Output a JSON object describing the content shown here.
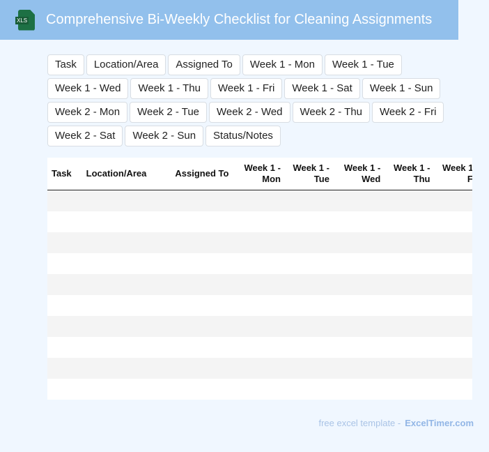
{
  "header": {
    "title": "Comprehensive Bi-Weekly Checklist for Cleaning Assignments",
    "logo_text": "XLS",
    "icon": "xls-file-icon"
  },
  "columns": [
    "Task",
    "Location/Area",
    "Assigned To",
    "Week 1 - Mon",
    "Week 1 - Tue",
    "Week 1 - Wed",
    "Week 1 - Thu",
    "Week 1 - Fri",
    "Week 1 - Sat",
    "Week 1 - Sun",
    "Week 2 - Mon",
    "Week 2 - Tue",
    "Week 2 - Wed",
    "Week 2 - Thu",
    "Week 2 - Fri",
    "Week 2 - Sat",
    "Week 2 - Sun",
    "Status/Notes"
  ],
  "table": {
    "headers": [
      "Task",
      "Location/Area",
      "Assigned To",
      "Week 1 - Mon",
      "Week 1 - Tue",
      "Week 1 - Wed",
      "Week 1 - Thu",
      "Week 1 - Fri",
      "Week 1 - Sat"
    ],
    "row_count": 10
  },
  "footer": {
    "text": "free excel template -",
    "brand": "ExcelTimer.com"
  },
  "colors": {
    "header_bg": "#92c0ec",
    "page_bg": "#f0f7ff",
    "stripe": "#f4f4f4"
  }
}
